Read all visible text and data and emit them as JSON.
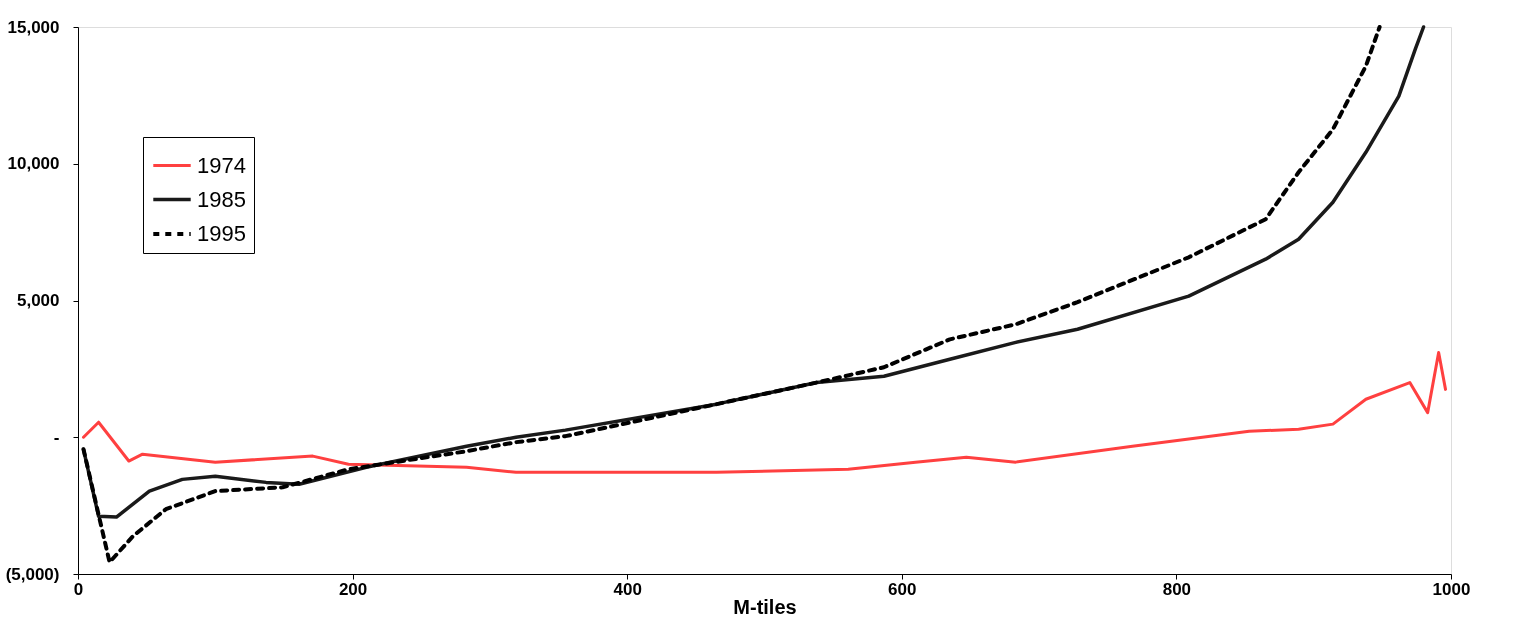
{
  "chart_data": {
    "type": "line",
    "xlabel": "M-tiles",
    "xlim": [
      0,
      1000
    ],
    "xticks": [
      0,
      200,
      400,
      600,
      800,
      1000
    ],
    "ylim": [
      -5000,
      15000
    ],
    "yticks": [
      {
        "value": -5000,
        "label": "(5,000)"
      },
      {
        "value": 0,
        "label": "-"
      },
      {
        "value": 5000,
        "label": "5,000"
      },
      {
        "value": 10000,
        "label": "10,000"
      },
      {
        "value": 15000,
        "label": "15,000"
      }
    ],
    "grid": false,
    "legend": "top left",
    "series": [
      {
        "name": "1974",
        "color": "#ff4040",
        "line_style": "solid",
        "x": [
          4,
          15,
          37,
          47,
          100,
          171,
          197,
          283,
          319,
          355,
          465,
          561,
          610,
          647,
          683,
          768,
          853,
          889,
          914,
          938,
          970,
          983,
          991,
          996
        ],
        "values": [
          0,
          550,
          -870,
          -620,
          -910,
          -690,
          -990,
          -1100,
          -1280,
          -1280,
          -1280,
          -1170,
          -910,
          -730,
          -910,
          -330,
          220,
          290,
          480,
          1390,
          2000,
          900,
          3100,
          1750
        ]
      },
      {
        "name": "1985",
        "color": "#1a1a1a",
        "line_style": "solid",
        "x": [
          4,
          15,
          28,
          52,
          76,
          100,
          137,
          161,
          210,
          283,
          319,
          355,
          465,
          538,
          587,
          635,
          683,
          728,
          809,
          865,
          889,
          914,
          938,
          962,
          974,
          980
        ],
        "values": [
          -440,
          -2890,
          -2920,
          -1970,
          -1540,
          -1430,
          -1650,
          -1720,
          -1100,
          -330,
          0,
          260,
          1210,
          2000,
          2230,
          2850,
          3470,
          3950,
          5160,
          6510,
          7240,
          8590,
          10420,
          12470,
          14190,
          15000
        ]
      },
      {
        "name": "1995",
        "color": "#000000",
        "line_style": "dashed",
        "x": [
          4,
          23,
          40,
          64,
          100,
          149,
          197,
          283,
          319,
          355,
          465,
          538,
          587,
          635,
          683,
          728,
          809,
          865,
          889,
          914,
          938,
          948
        ],
        "values": [
          -440,
          -4570,
          -3620,
          -2630,
          -1970,
          -1830,
          -1170,
          -510,
          -180,
          40,
          1210,
          2000,
          2560,
          3580,
          4130,
          4940,
          6580,
          7970,
          9690,
          11260,
          13570,
          15000
        ]
      }
    ]
  }
}
